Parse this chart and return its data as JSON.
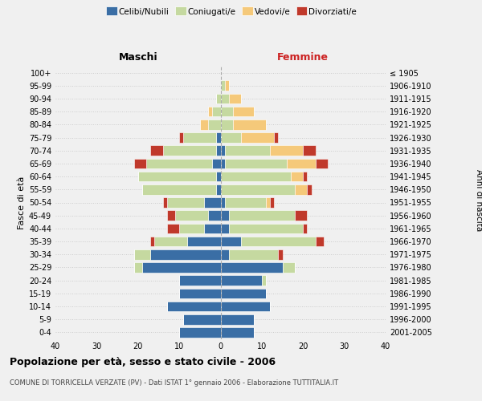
{
  "age_groups": [
    "0-4",
    "5-9",
    "10-14",
    "15-19",
    "20-24",
    "25-29",
    "30-34",
    "35-39",
    "40-44",
    "45-49",
    "50-54",
    "55-59",
    "60-64",
    "65-69",
    "70-74",
    "75-79",
    "80-84",
    "85-89",
    "90-94",
    "95-99",
    "100+"
  ],
  "birth_years": [
    "2001-2005",
    "1996-2000",
    "1991-1995",
    "1986-1990",
    "1981-1985",
    "1976-1980",
    "1971-1975",
    "1966-1970",
    "1961-1965",
    "1956-1960",
    "1951-1955",
    "1946-1950",
    "1941-1945",
    "1936-1940",
    "1931-1935",
    "1926-1930",
    "1921-1925",
    "1916-1920",
    "1911-1915",
    "1906-1910",
    "≤ 1905"
  ],
  "male": {
    "celibi": [
      10,
      9,
      13,
      10,
      10,
      19,
      17,
      8,
      4,
      3,
      4,
      1,
      1,
      2,
      1,
      1,
      0,
      0,
      0,
      0,
      0
    ],
    "coniugati": [
      0,
      0,
      0,
      0,
      0,
      2,
      4,
      8,
      6,
      8,
      9,
      18,
      19,
      16,
      13,
      8,
      3,
      2,
      1,
      0,
      0
    ],
    "vedovi": [
      0,
      0,
      0,
      0,
      0,
      0,
      0,
      0,
      0,
      0,
      0,
      0,
      0,
      0,
      0,
      0,
      2,
      1,
      0,
      0,
      0
    ],
    "divorziati": [
      0,
      0,
      0,
      0,
      0,
      0,
      0,
      1,
      3,
      2,
      1,
      0,
      0,
      3,
      3,
      1,
      0,
      0,
      0,
      0,
      0
    ]
  },
  "female": {
    "nubili": [
      8,
      8,
      12,
      11,
      10,
      15,
      2,
      5,
      2,
      2,
      1,
      0,
      0,
      1,
      1,
      0,
      0,
      0,
      0,
      0,
      0
    ],
    "coniugate": [
      0,
      0,
      0,
      0,
      1,
      3,
      12,
      18,
      18,
      16,
      10,
      18,
      17,
      15,
      11,
      5,
      3,
      3,
      2,
      1,
      0
    ],
    "vedove": [
      0,
      0,
      0,
      0,
      0,
      0,
      0,
      0,
      0,
      0,
      1,
      3,
      3,
      7,
      8,
      8,
      8,
      5,
      3,
      1,
      0
    ],
    "divorziate": [
      0,
      0,
      0,
      0,
      0,
      0,
      1,
      2,
      1,
      3,
      1,
      1,
      1,
      3,
      3,
      1,
      0,
      0,
      0,
      0,
      0
    ]
  },
  "colors": {
    "celibi_nubili": "#3a6ea5",
    "coniugati": "#c5d9a0",
    "vedovi": "#f5c97a",
    "divorziati": "#c0392b"
  },
  "xlim": 40,
  "title": "Popolazione per età, sesso e stato civile - 2006",
  "subtitle": "COMUNE DI TORRICELLA VERZATE (PV) - Dati ISTAT 1° gennaio 2006 - Elaborazione TUTTITALIA.IT",
  "ylabel_left": "Fasce di età",
  "ylabel_right": "Anni di nascita",
  "xlabel_left": "Maschi",
  "xlabel_right": "Femmine",
  "legend_labels": [
    "Celibi/Nubili",
    "Coniugati/e",
    "Vedovi/e",
    "Divorziati/e"
  ],
  "bg_color": "#f0f0f0"
}
